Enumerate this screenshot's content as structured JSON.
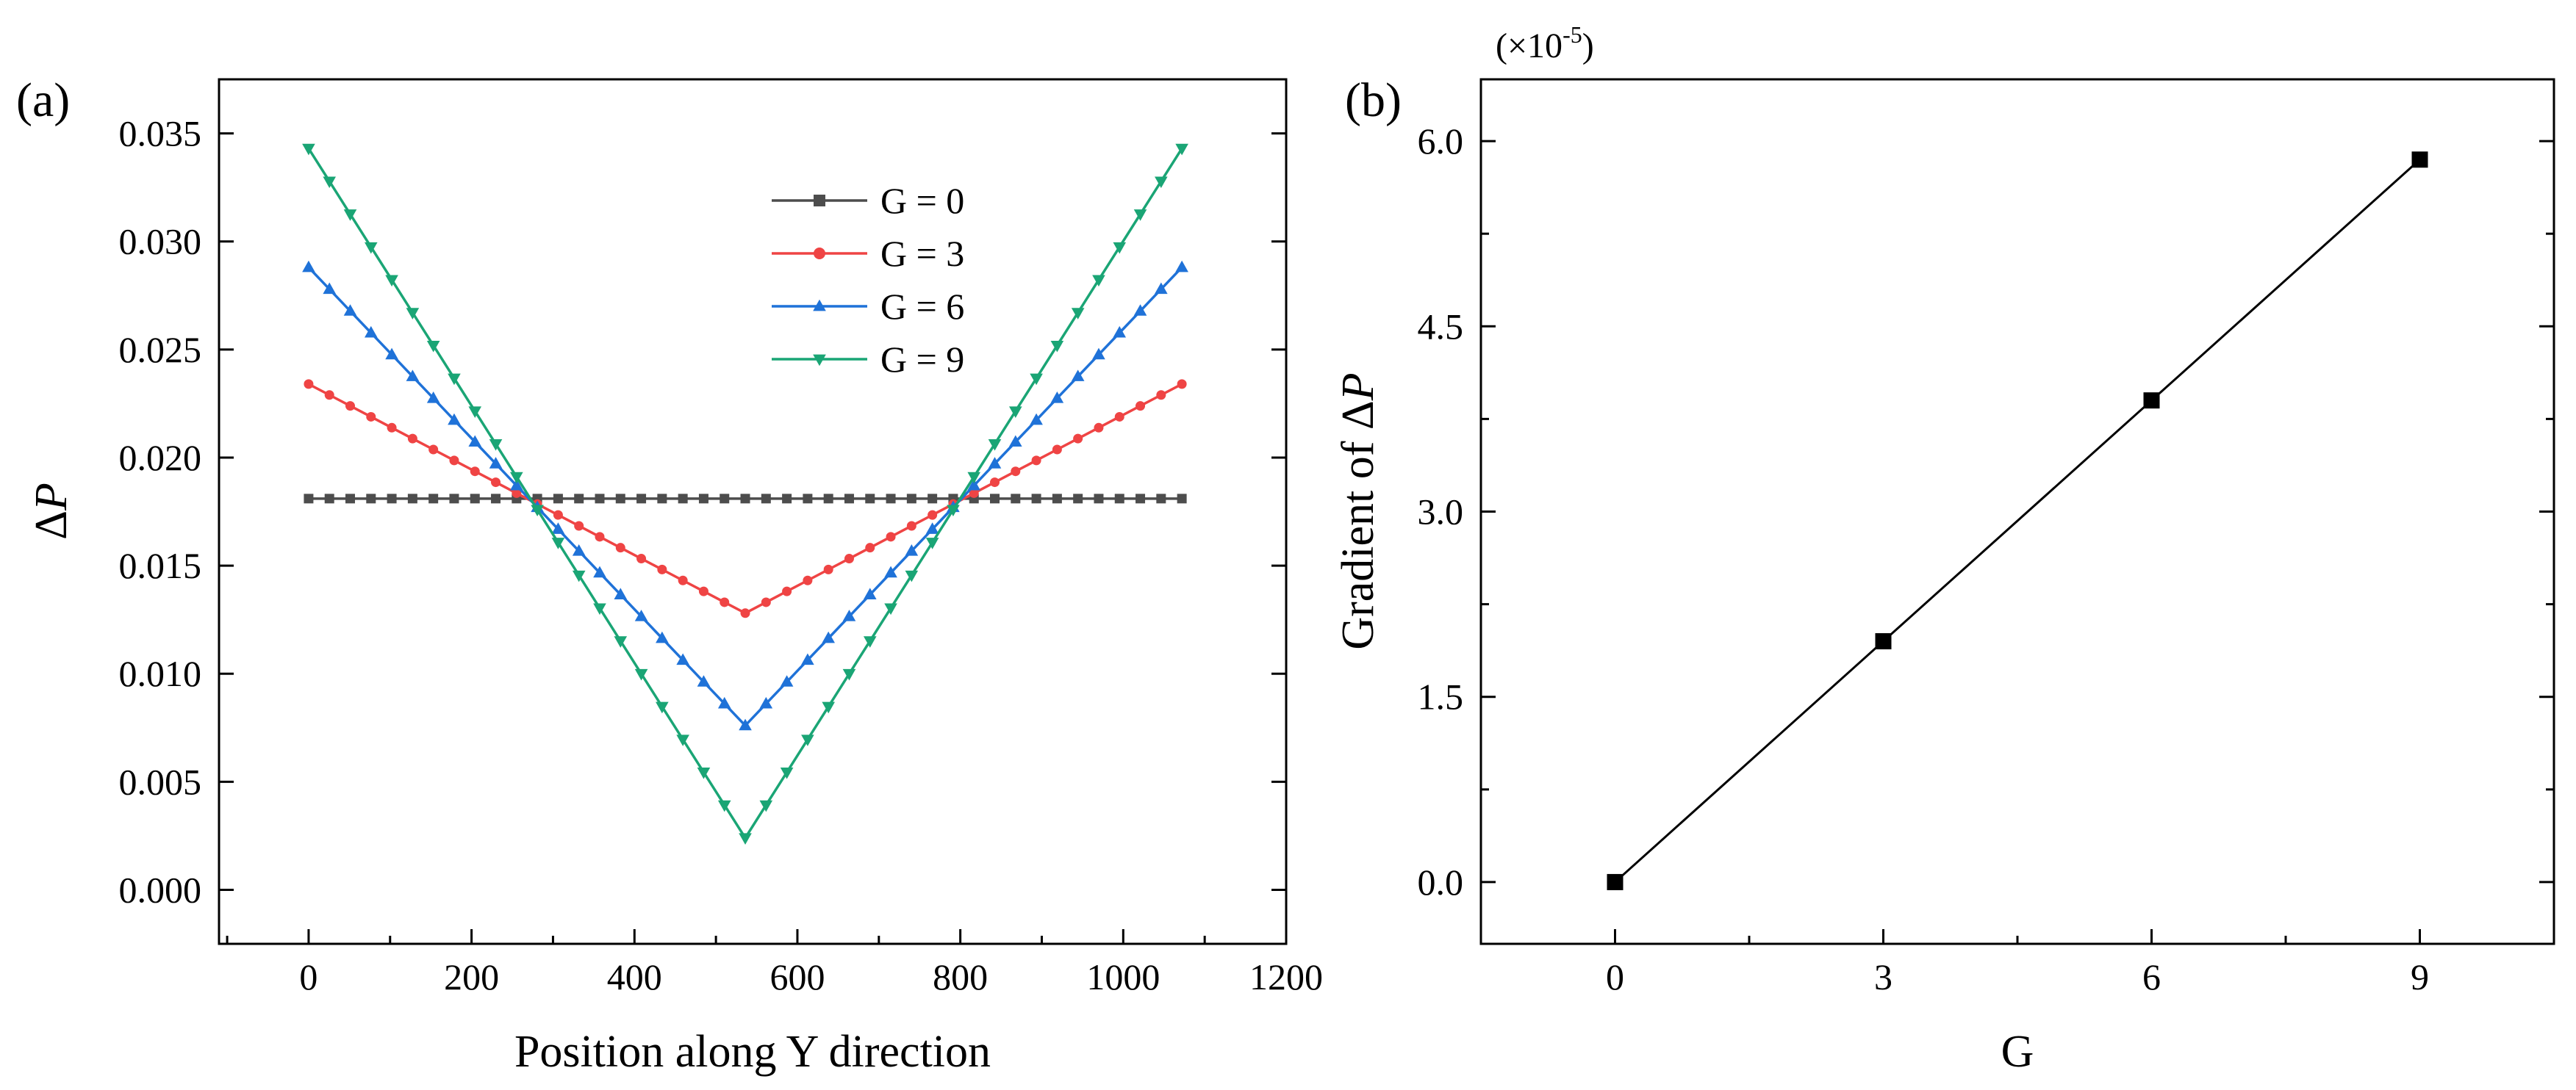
{
  "chart_data": [
    {
      "type": "line",
      "panel_label": "(a)",
      "xlabel": "Position along Y direction",
      "ylabel_prefix": "Δ",
      "ylabel_var": "P",
      "xlim": [
        -110,
        1200
      ],
      "ylim": [
        -0.0025,
        0.0375
      ],
      "xticks": [
        0,
        200,
        400,
        600,
        800,
        1000,
        1200
      ],
      "yticks": [
        0.0,
        0.005,
        0.01,
        0.015,
        0.02,
        0.025,
        0.03,
        0.035
      ],
      "xtick_labels": [
        "0",
        "200",
        "400",
        "600",
        "800",
        "1000",
        "1200"
      ],
      "ytick_labels": [
        "0.000",
        "0.005",
        "0.010",
        "0.015",
        "0.020",
        "0.025",
        "0.030",
        "0.035"
      ],
      "legend_position": "top-center",
      "x_start": 0,
      "x_end": 1072,
      "num_points": 43,
      "series": [
        {
          "name": "G = 0",
          "color": "#4d4d4d",
          "marker": "square",
          "edge": 0.0181,
          "center": 0.0181
        },
        {
          "name": "G = 3",
          "color": "#ef4444",
          "marker": "circle",
          "edge": 0.0234,
          "center": 0.0128
        },
        {
          "name": "G = 6",
          "color": "#1f72d8",
          "marker": "triangle-up",
          "edge": 0.0288,
          "center": 0.0076
        },
        {
          "name": "G = 9",
          "color": "#1aa575",
          "marker": "triangle-down",
          "edge": 0.0343,
          "center": 0.0024
        }
      ]
    },
    {
      "type": "line",
      "panel_label": "(b)",
      "xlabel": "G",
      "ylabel_prefix": "Gradient of Δ",
      "ylabel_var": "P",
      "sci_prefix": "(×10",
      "sci_exp": "-5",
      "sci_suffix": ")",
      "xlim": [
        -1.5,
        10.5
      ],
      "ylim": [
        -0.5,
        6.5
      ],
      "xticks": [
        0,
        3,
        6,
        9
      ],
      "yticks": [
        0.0,
        1.5,
        3.0,
        4.5,
        6.0
      ],
      "xtick_labels": [
        "0",
        "3",
        "6",
        "9"
      ],
      "ytick_labels": [
        "0.0",
        "1.5",
        "3.0",
        "4.5",
        "6.0"
      ],
      "x": [
        0,
        3,
        6,
        9
      ],
      "y": [
        0.0,
        1.95,
        3.9,
        5.85
      ],
      "color": "#000000",
      "marker": "square"
    }
  ]
}
